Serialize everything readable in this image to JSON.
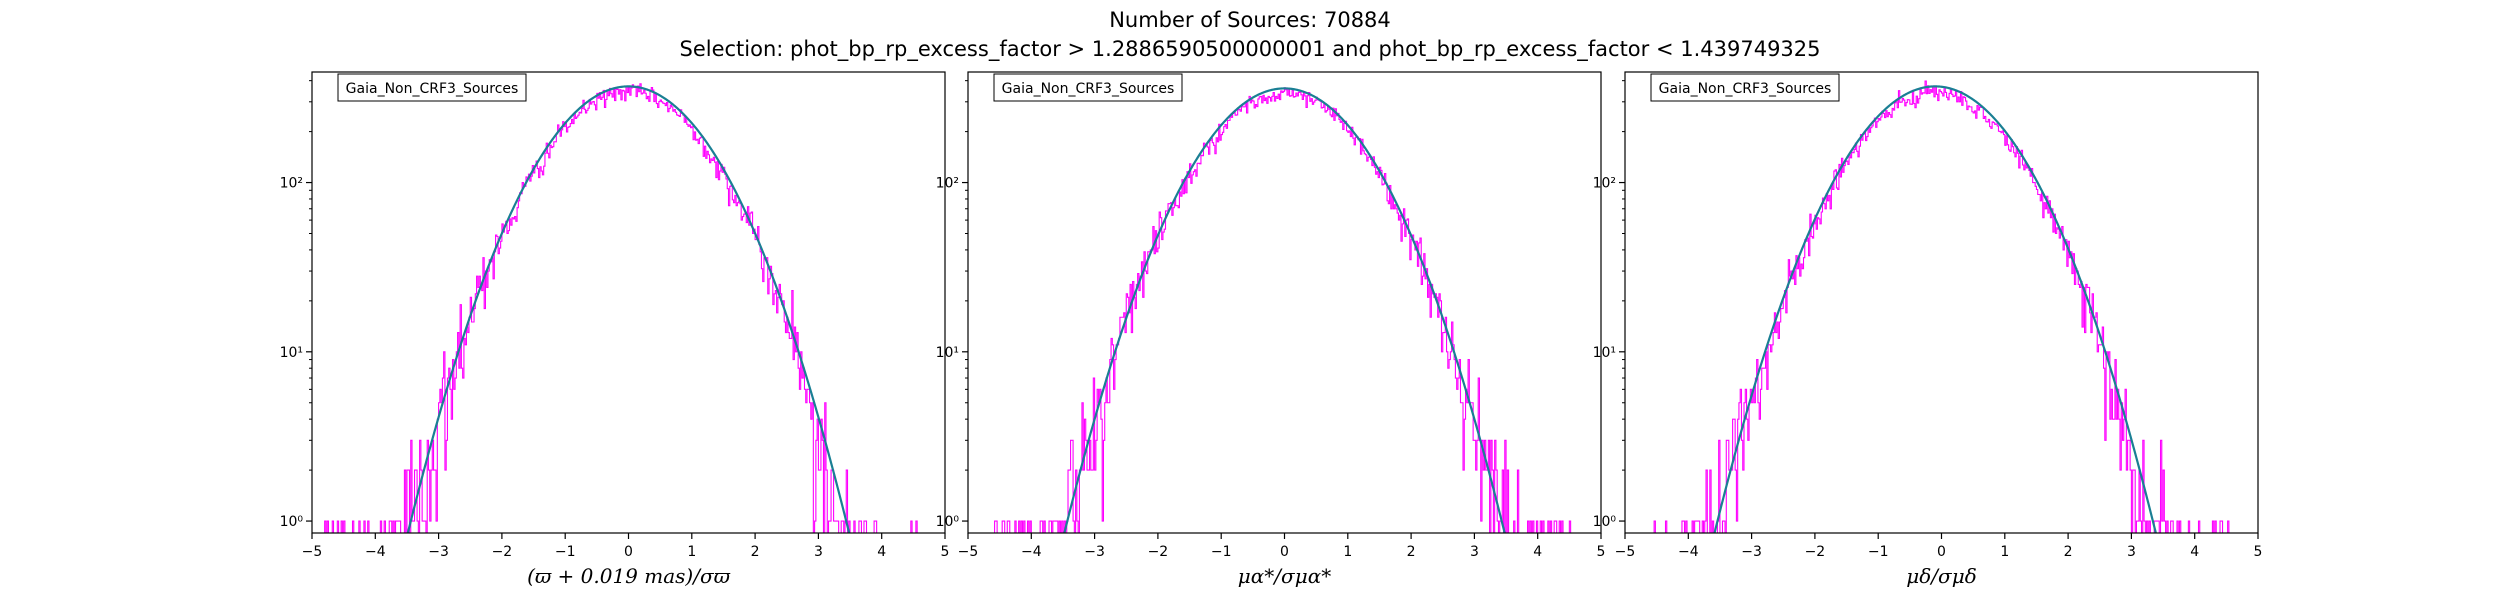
{
  "figure": {
    "title": "Number of Sources: 70884",
    "subtitle": "Selection: phot_bp_rp_excess_factor > 1.2886590500000001 and phot_bp_rp_excess_factor < 1.439749325"
  },
  "colors": {
    "histogram": "#ff00ff",
    "fit": "#1a7f94",
    "axes": "#000000",
    "background": "#ffffff"
  },
  "chart_data": [
    {
      "type": "line",
      "yscale": "log",
      "xlim": [
        -5,
        5
      ],
      "ylim": [
        0.85,
        450
      ],
      "xticks": [
        -5,
        -4,
        -3,
        -2,
        -1,
        0,
        1,
        2,
        3,
        4,
        5
      ],
      "xtick_labels": [
        "−5",
        "−4",
        "−3",
        "−2",
        "−1",
        "0",
        "1",
        "2",
        "3",
        "4",
        "5"
      ],
      "yticks": [
        1,
        10,
        100
      ],
      "ytick_labels": [
        "10⁰",
        "10¹",
        "10²"
      ],
      "xlabel": "(ϖ + 0.019 mas)/σϖ",
      "legend": "Gaia_Non_CRF3_Sources",
      "legend_position": "top-left",
      "series": [
        {
          "kind": "histogram-step",
          "x_range": [
            -4.8,
            4.6
          ],
          "peak": 345,
          "mu": 0.0,
          "sigma": 1.0
        },
        {
          "kind": "gaussian-fit",
          "amplitude": 370,
          "mu": 0.0,
          "sigma": 1.0
        }
      ]
    },
    {
      "type": "line",
      "yscale": "log",
      "xlim": [
        -5,
        5
      ],
      "ylim": [
        0.85,
        450
      ],
      "xticks": [
        -5,
        -4,
        -3,
        -2,
        -1,
        0,
        1,
        2,
        3,
        4,
        5
      ],
      "xtick_labels": [
        "−5",
        "−4",
        "−3",
        "−2",
        "−1",
        "0",
        "1",
        "2",
        "3",
        "4",
        "5"
      ],
      "yticks": [
        1,
        10,
        100
      ],
      "ytick_labels": [
        "10⁰",
        "10¹",
        "10²"
      ],
      "xlabel": "μα*/σμα*",
      "legend": "Gaia_Non_CRF3_Sources",
      "legend_position": "top-left",
      "series": [
        {
          "kind": "histogram-step",
          "x_range": [
            -4.8,
            4.6
          ],
          "peak": 340,
          "mu": 0.0,
          "sigma": 1.0
        },
        {
          "kind": "gaussian-fit",
          "amplitude": 360,
          "mu": 0.0,
          "sigma": 1.0
        }
      ]
    },
    {
      "type": "line",
      "yscale": "log",
      "xlim": [
        -5,
        5
      ],
      "ylim": [
        0.85,
        450
      ],
      "xticks": [
        -5,
        -4,
        -3,
        -2,
        -1,
        0,
        1,
        2,
        3,
        4,
        5
      ],
      "xtick_labels": [
        "−5",
        "−4",
        "−3",
        "−2",
        "−1",
        "0",
        "1",
        "2",
        "3",
        "4",
        "5"
      ],
      "yticks": [
        1,
        10,
        100
      ],
      "ytick_labels": [
        "10⁰",
        "10¹",
        "10²"
      ],
      "xlabel": "μδ/σμδ",
      "legend": "Gaia_Non_CRF3_Sources",
      "legend_position": "top-left",
      "series": [
        {
          "kind": "histogram-step",
          "x_range": [
            -4.8,
            4.6
          ],
          "peak": 340,
          "mu": -0.1,
          "sigma": 1.0
        },
        {
          "kind": "gaussian-fit",
          "amplitude": 370,
          "mu": -0.1,
          "sigma": 1.0
        }
      ]
    }
  ]
}
